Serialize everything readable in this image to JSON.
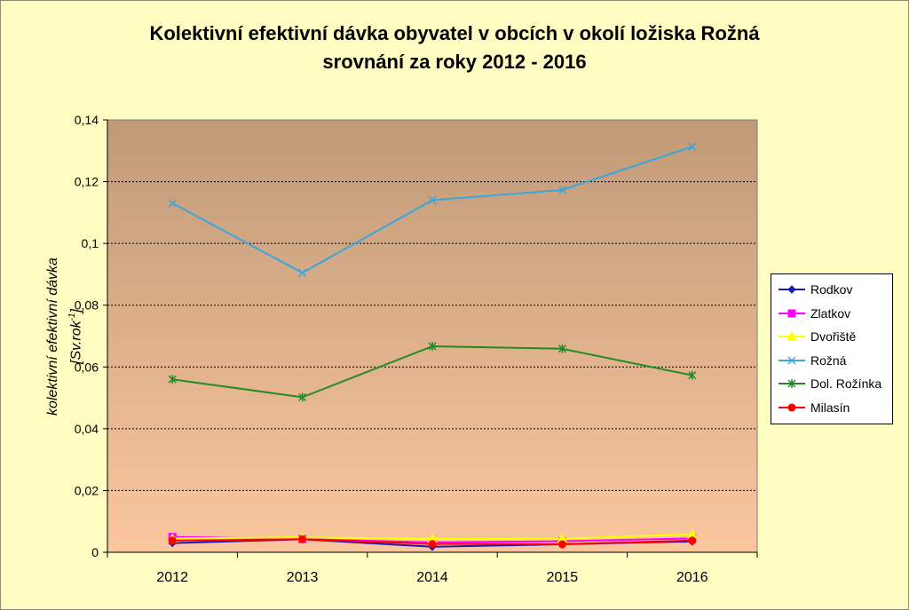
{
  "chart_data": {
    "type": "line",
    "title": "Kolektivní efektivní dávka obyvatel v obcích v okolí ložiska Rožná",
    "subtitle": "srovnání za roky 2012 - 2016",
    "xlabel": "",
    "ylabel_line1": "kolektivní efektivní dávka",
    "ylabel_line2": "[Sv.rok",
    "ylabel_sup": "-1",
    "ylabel_end": "]",
    "categories": [
      "2012",
      "2013",
      "2014",
      "2015",
      "2016"
    ],
    "ylim": [
      0,
      0.14
    ],
    "yticks": [
      0,
      0.02,
      0.04,
      0.06,
      0.08,
      0.1,
      0.12,
      0.14
    ],
    "ytick_labels": [
      "0",
      "0,02",
      "0,04",
      "0,06",
      "0,08",
      "0,1",
      "0,12",
      "0,14"
    ],
    "grid": true,
    "legend_position": "right",
    "series": [
      {
        "name": "Rodkov",
        "values": [
          0.003,
          0.0042,
          0.0018,
          0.0026,
          0.0035
        ],
        "color": "#1a1ab8",
        "marker": "diamond"
      },
      {
        "name": "Zlatkov",
        "values": [
          0.005,
          0.0043,
          0.0032,
          0.0036,
          0.0045
        ],
        "color": "#ff00ff",
        "marker": "square"
      },
      {
        "name": "Dvořiště",
        "values": [
          0.0045,
          0.0048,
          0.0043,
          0.0044,
          0.0058
        ],
        "color": "#ffff00",
        "marker": "triangle"
      },
      {
        "name": "Rožná",
        "values": [
          0.113,
          0.0905,
          0.114,
          0.1173,
          0.1313
        ],
        "color": "#3aa6dd",
        "marker": "x"
      },
      {
        "name": "Dol. Rožínka",
        "values": [
          0.056,
          0.0502,
          0.0667,
          0.0659,
          0.0573
        ],
        "color": "#228b22",
        "marker": "star"
      },
      {
        "name": "Milasín",
        "values": [
          0.0038,
          0.0042,
          0.0027,
          0.0026,
          0.0038
        ],
        "color": "#ff0000",
        "marker": "circle"
      }
    ]
  },
  "colors": {
    "frame_background": "#fefcc1",
    "plot_gradient_top": "#c09a78",
    "plot_gradient_bottom": "#fbc69e",
    "axis": "#000000"
  }
}
